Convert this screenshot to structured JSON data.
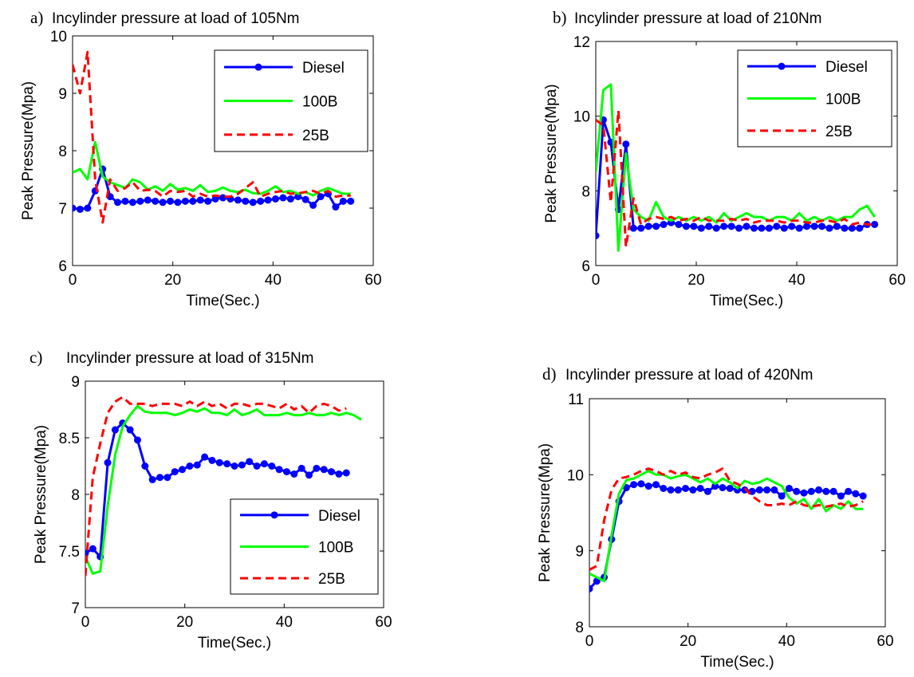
{
  "chart_data": [
    {
      "type": "line",
      "panel_label": "a)",
      "title": "Incylinder pressure at load of 105Nm",
      "xlabel": "Time(Sec.)",
      "ylabel": "Peak Pressure(Mpa)",
      "xlim": [
        0,
        60
      ],
      "ylim": [
        6,
        10
      ],
      "xticks": [
        "0",
        "20",
        "40",
        "60"
      ],
      "yticks": [
        "6",
        "7",
        "8",
        "9",
        "10"
      ],
      "legend": "top-right",
      "grid": false,
      "series": [
        {
          "name": "Diesel",
          "color": "#0000ff",
          "style": "solid-marker",
          "x": [
            0,
            1.5,
            3,
            4.5,
            6,
            7.5,
            9,
            10.5,
            12,
            13.5,
            15,
            16.5,
            18,
            19.5,
            21,
            22.5,
            24,
            25.5,
            27,
            28.5,
            30,
            31.5,
            33,
            34.5,
            36,
            37.5,
            39,
            40.5,
            42,
            43.5,
            45,
            46.5,
            48,
            49.5,
            51,
            52.5,
            54,
            55.5
          ],
          "y": [
            7.0,
            6.98,
            7.0,
            7.3,
            7.68,
            7.2,
            7.1,
            7.12,
            7.1,
            7.12,
            7.14,
            7.12,
            7.1,
            7.12,
            7.1,
            7.12,
            7.12,
            7.14,
            7.12,
            7.16,
            7.18,
            7.16,
            7.14,
            7.12,
            7.1,
            7.12,
            7.14,
            7.16,
            7.18,
            7.16,
            7.2,
            7.15,
            7.05,
            7.2,
            7.25,
            7.02,
            7.12,
            7.12
          ]
        },
        {
          "name": "100B",
          "color": "#00ff00",
          "style": "solid",
          "x": [
            0,
            1.5,
            3,
            4.5,
            6,
            7.5,
            9,
            10.5,
            12,
            13.5,
            15,
            16.5,
            18,
            19.5,
            21,
            22.5,
            24,
            25.5,
            27,
            28.5,
            30,
            31.5,
            33,
            34.5,
            36,
            37.5,
            39,
            40.5,
            42,
            43.5,
            45,
            46.5,
            48,
            49.5,
            51,
            52.5,
            54,
            55.5
          ],
          "y": [
            7.62,
            7.68,
            7.5,
            8.15,
            7.55,
            7.45,
            7.4,
            7.35,
            7.5,
            7.45,
            7.32,
            7.38,
            7.3,
            7.42,
            7.32,
            7.35,
            7.3,
            7.4,
            7.28,
            7.3,
            7.36,
            7.3,
            7.28,
            7.32,
            7.26,
            7.25,
            7.3,
            7.38,
            7.28,
            7.3,
            7.25,
            7.28,
            7.22,
            7.3,
            7.35,
            7.3,
            7.25,
            7.25
          ]
        },
        {
          "name": "25B",
          "color": "#ff0000",
          "style": "dashed",
          "x": [
            0,
            1.5,
            3,
            4.5,
            6,
            7.5,
            9,
            10.5,
            12,
            13.5,
            15,
            16.5,
            18,
            19.5,
            21,
            22.5,
            24,
            25.5,
            27,
            28.5,
            30,
            31.5,
            33,
            34.5,
            36,
            37.5,
            39,
            40.5,
            42,
            43.5,
            45,
            46.5,
            48,
            49.5,
            51,
            52.5,
            54,
            55.5
          ],
          "y": [
            9.5,
            9.0,
            9.72,
            7.5,
            6.75,
            7.5,
            7.3,
            7.35,
            7.45,
            7.3,
            7.32,
            7.3,
            7.2,
            7.3,
            7.28,
            7.3,
            7.2,
            7.25,
            7.2,
            7.22,
            7.2,
            7.2,
            7.25,
            7.35,
            7.45,
            7.2,
            7.25,
            7.28,
            7.3,
            7.25,
            7.26,
            7.28,
            7.3,
            7.25,
            7.3,
            7.2,
            7.22,
            7.22
          ]
        }
      ]
    },
    {
      "type": "line",
      "panel_label": "b)",
      "title": "Incylinder pressure at load of 210Nm",
      "xlabel": "Time(Sec.)",
      "ylabel": "Peak Pressure(Mpa)",
      "xlim": [
        0,
        60
      ],
      "ylim": [
        6,
        12
      ],
      "xticks": [
        "0",
        "20",
        "40",
        "60"
      ],
      "yticks": [
        "6",
        "8",
        "10",
        "12"
      ],
      "legend": "top-right",
      "grid": false,
      "series": [
        {
          "name": "Diesel",
          "color": "#0000ff",
          "style": "solid-marker",
          "x": [
            0,
            1.5,
            3,
            4.5,
            6,
            7.5,
            9,
            10.5,
            12,
            13.5,
            15,
            16.5,
            18,
            19.5,
            21,
            22.5,
            24,
            25.5,
            27,
            28.5,
            30,
            31.5,
            33,
            34.5,
            36,
            37.5,
            39,
            40.5,
            42,
            43.5,
            45,
            46.5,
            48,
            49.5,
            51,
            52.5,
            54,
            55.5
          ],
          "y": [
            6.8,
            9.9,
            9.3,
            7.5,
            9.25,
            7.0,
            7.0,
            7.05,
            7.05,
            7.1,
            7.15,
            7.1,
            7.05,
            7.05,
            7.0,
            7.05,
            7.0,
            7.05,
            7.05,
            7.0,
            7.05,
            7.0,
            7.0,
            7.0,
            7.05,
            7.0,
            7.05,
            7.0,
            7.05,
            7.05,
            7.05,
            7.0,
            7.05,
            7.0,
            7.0,
            7.0,
            7.1,
            7.1
          ]
        },
        {
          "name": "100B",
          "color": "#00ff00",
          "style": "solid",
          "x": [
            0,
            1.5,
            3,
            4.5,
            6,
            7.5,
            9,
            10.5,
            12,
            13.5,
            15,
            16.5,
            18,
            19.5,
            21,
            22.5,
            24,
            25.5,
            27,
            28.5,
            30,
            31.5,
            33,
            34.5,
            36,
            37.5,
            39,
            40.5,
            42,
            43.5,
            45,
            46.5,
            48,
            49.5,
            51,
            52.5,
            54,
            55.5
          ],
          "y": [
            8.5,
            10.7,
            10.85,
            6.4,
            9.0,
            7.5,
            7.3,
            7.2,
            7.7,
            7.3,
            7.2,
            7.3,
            7.2,
            7.3,
            7.2,
            7.3,
            7.15,
            7.4,
            7.2,
            7.3,
            7.4,
            7.3,
            7.3,
            7.2,
            7.3,
            7.3,
            7.2,
            7.4,
            7.2,
            7.3,
            7.2,
            7.3,
            7.2,
            7.3,
            7.3,
            7.5,
            7.6,
            7.3
          ]
        },
        {
          "name": "25B",
          "color": "#ff0000",
          "style": "dashed",
          "x": [
            0,
            1.5,
            3,
            4.5,
            6,
            7.5,
            9,
            10.5,
            12,
            13.5,
            15,
            16.5,
            18,
            19.5,
            21,
            22.5,
            24,
            25.5,
            27,
            28.5,
            30,
            31.5,
            33,
            34.5,
            36,
            37.5,
            39,
            40.5,
            42,
            43.5,
            45,
            46.5,
            48,
            49.5,
            51,
            52.5,
            54,
            55.5
          ],
          "y": [
            9.9,
            9.75,
            7.7,
            10.15,
            6.5,
            7.8,
            7.1,
            7.25,
            7.3,
            7.25,
            7.3,
            7.2,
            7.25,
            7.2,
            7.3,
            7.2,
            7.2,
            7.2,
            7.25,
            7.2,
            7.25,
            7.15,
            7.2,
            7.2,
            7.2,
            7.15,
            7.2,
            7.2,
            7.15,
            7.15,
            7.2,
            7.2,
            7.15,
            7.25,
            7.1,
            7.15,
            7.1,
            7.1
          ]
        }
      ]
    },
    {
      "type": "line",
      "panel_label": "c)",
      "title": "Incylinder pressure at load of 315Nm",
      "xlabel": "Time(Sec.)",
      "ylabel": "Peak Pressure(Mpa)",
      "xlim": [
        0,
        60
      ],
      "ylim": [
        7,
        9
      ],
      "xticks": [
        "0",
        "20",
        "40",
        "60"
      ],
      "yticks": [
        "7",
        "7.5",
        "8",
        "8.5",
        "9"
      ],
      "legend": "bottom-right",
      "grid": false,
      "series": [
        {
          "name": "Diesel",
          "color": "#0000ff",
          "style": "solid-marker",
          "x": [
            0,
            1.5,
            3,
            4.5,
            6,
            7.5,
            9,
            10.5,
            12,
            13.5,
            15,
            16.5,
            18,
            19.5,
            21,
            22.5,
            24,
            25.5,
            27,
            28.5,
            30,
            31.5,
            33,
            34.5,
            36,
            37.5,
            39,
            40.5,
            42,
            43.5,
            45,
            46.5,
            48,
            49.5,
            51,
            52.5
          ],
          "y": [
            7.48,
            7.52,
            7.45,
            8.28,
            8.57,
            8.63,
            8.57,
            8.48,
            8.25,
            8.13,
            8.15,
            8.15,
            8.2,
            8.22,
            8.25,
            8.26,
            8.33,
            8.3,
            8.28,
            8.27,
            8.25,
            8.26,
            8.29,
            8.25,
            8.27,
            8.25,
            8.22,
            8.2,
            8.18,
            8.23,
            8.17,
            8.23,
            8.22,
            8.2,
            8.18,
            8.19
          ]
        },
        {
          "name": "100B",
          "color": "#00ff00",
          "style": "solid",
          "x": [
            0,
            1.5,
            3,
            4.5,
            6,
            7.5,
            9,
            10.5,
            12,
            13.5,
            15,
            16.5,
            18,
            19.5,
            21,
            22.5,
            24,
            25.5,
            27,
            28.5,
            30,
            31.5,
            33,
            34.5,
            36,
            37.5,
            39,
            40.5,
            42,
            43.5,
            45,
            46.5,
            48,
            49.5,
            51,
            52.5,
            54,
            55.5
          ],
          "y": [
            7.45,
            7.3,
            7.32,
            7.9,
            8.35,
            8.6,
            8.7,
            8.78,
            8.73,
            8.72,
            8.72,
            8.72,
            8.7,
            8.72,
            8.75,
            8.73,
            8.76,
            8.72,
            8.72,
            8.7,
            8.75,
            8.7,
            8.72,
            8.75,
            8.7,
            8.7,
            8.7,
            8.72,
            8.7,
            8.7,
            8.72,
            8.7,
            8.7,
            8.72,
            8.7,
            8.72,
            8.7,
            8.66
          ]
        },
        {
          "name": "25B",
          "color": "#ff0000",
          "style": "dashed",
          "x": [
            0,
            1.5,
            3,
            4.5,
            6,
            7.5,
            9,
            10.5,
            12,
            13.5,
            15,
            16.5,
            18,
            19.5,
            21,
            22.5,
            24,
            25.5,
            27,
            28.5,
            30,
            31.5,
            33,
            34.5,
            36,
            37.5,
            39,
            40.5,
            42,
            43.5,
            45,
            46.5,
            48,
            49.5,
            51,
            52.5
          ],
          "y": [
            7.28,
            8.15,
            8.45,
            8.72,
            8.82,
            8.86,
            8.8,
            8.8,
            8.8,
            8.78,
            8.8,
            8.8,
            8.8,
            8.78,
            8.82,
            8.78,
            8.82,
            8.78,
            8.8,
            8.76,
            8.8,
            8.8,
            8.78,
            8.8,
            8.8,
            8.78,
            8.76,
            8.8,
            8.75,
            8.78,
            8.72,
            8.78,
            8.8,
            8.78,
            8.74,
            8.76
          ]
        }
      ]
    },
    {
      "type": "line",
      "panel_label": "d)",
      "title": "Incylinder pressure at load of 420Nm",
      "xlabel": "Time(Sec.)",
      "ylabel": "Peak Pressure(Mpa)",
      "xlim": [
        0,
        60
      ],
      "ylim": [
        8,
        11
      ],
      "xticks": [
        "0",
        "20",
        "40",
        "60"
      ],
      "yticks": [
        "8",
        "9",
        "10",
        "11"
      ],
      "legend": "none",
      "grid": false,
      "series": [
        {
          "name": "Diesel",
          "color": "#0000ff",
          "style": "solid-marker",
          "x": [
            0,
            1.5,
            3,
            4.5,
            6,
            7.5,
            9,
            10.5,
            12,
            13.5,
            15,
            16.5,
            18,
            19.5,
            21,
            22.5,
            24,
            25.5,
            27,
            28.5,
            30,
            31.5,
            33,
            34.5,
            36,
            37.5,
            39,
            40.5,
            42,
            43.5,
            45,
            46.5,
            48,
            49.5,
            51,
            52.5,
            54,
            55.5
          ],
          "y": [
            8.5,
            8.6,
            8.65,
            9.15,
            9.65,
            9.83,
            9.87,
            9.88,
            9.85,
            9.87,
            9.82,
            9.8,
            9.8,
            9.82,
            9.8,
            9.82,
            9.78,
            9.85,
            9.83,
            9.82,
            9.8,
            9.8,
            9.78,
            9.8,
            9.8,
            9.8,
            9.72,
            9.82,
            9.78,
            9.76,
            9.78,
            9.8,
            9.78,
            9.78,
            9.72,
            9.78,
            9.75,
            9.72
          ]
        },
        {
          "name": "100B",
          "color": "#00ff00",
          "style": "solid",
          "x": [
            0,
            1.5,
            3,
            4.5,
            6,
            7.5,
            9,
            10.5,
            12,
            13.5,
            15,
            16.5,
            18,
            19.5,
            21,
            22.5,
            24,
            25.5,
            27,
            28.5,
            30,
            31.5,
            33,
            34.5,
            36,
            37.5,
            39,
            40.5,
            42,
            43.5,
            45,
            46.5,
            48,
            49.5,
            51,
            52.5,
            54,
            55.5
          ],
          "y": [
            8.7,
            8.65,
            8.6,
            9.2,
            9.75,
            9.93,
            9.95,
            10.0,
            10.05,
            10.0,
            10.0,
            9.95,
            9.98,
            10.0,
            9.95,
            9.9,
            9.95,
            9.88,
            9.95,
            9.9,
            9.82,
            9.92,
            9.88,
            9.9,
            9.95,
            9.9,
            9.85,
            9.7,
            9.62,
            9.68,
            9.55,
            9.68,
            9.52,
            9.6,
            9.55,
            9.65,
            9.55,
            9.55
          ]
        },
        {
          "name": "25B",
          "color": "#ff0000",
          "style": "dashed",
          "x": [
            0,
            1.5,
            3,
            4.5,
            6,
            7.5,
            9,
            10.5,
            12,
            13.5,
            15,
            16.5,
            18,
            19.5,
            21,
            22.5,
            24,
            25.5,
            27,
            28.5,
            30,
            31.5,
            33,
            34.5,
            36,
            37.5,
            39,
            40.5,
            42,
            43.5,
            45,
            46.5,
            48,
            49.5,
            51,
            52.5,
            54,
            55.5
          ],
          "y": [
            8.75,
            8.8,
            9.4,
            9.8,
            9.95,
            9.97,
            10.0,
            10.05,
            10.08,
            10.05,
            10.0,
            10.05,
            10.0,
            10.03,
            9.97,
            9.95,
            10.0,
            10.03,
            10.08,
            9.92,
            9.88,
            9.82,
            9.72,
            9.65,
            9.6,
            9.6,
            9.62,
            9.6,
            9.65,
            9.6,
            9.58,
            9.6,
            9.58,
            9.6,
            9.62,
            9.58,
            9.6,
            9.65
          ]
        }
      ]
    }
  ]
}
